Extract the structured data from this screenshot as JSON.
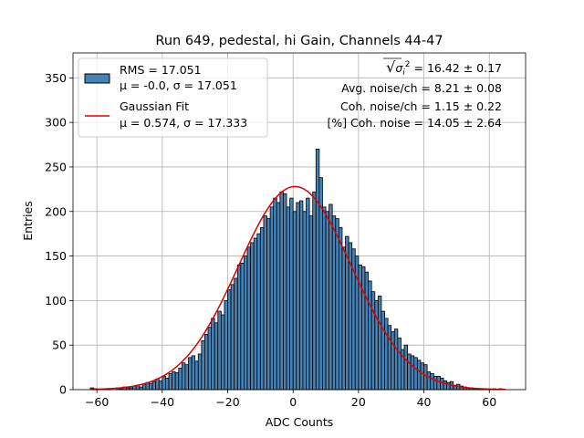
{
  "chart_data": {
    "type": "bar",
    "title": "Run 649, pedestal, hi Gain, Channels 44-47",
    "xlabel": "ADC Counts",
    "ylabel": "Entries",
    "xlim": [
      -67.3,
      71.1
    ],
    "ylim": [
      0,
      378
    ],
    "xticks": [
      -60,
      -40,
      -20,
      0,
      20,
      40,
      60
    ],
    "yticks": [
      0,
      50,
      100,
      150,
      200,
      250,
      300,
      350
    ],
    "grid": true,
    "legend_position": "upper-left",
    "legend": [
      {
        "kind": "patch",
        "line1": "RMS = 17.051",
        "line2": "μ = -0.0, σ = 17.051",
        "color": "#4682b4"
      },
      {
        "kind": "line",
        "line1": "Gaussian Fit",
        "line2": "μ = 0.574, σ = 17.333",
        "color": "#e00000"
      }
    ],
    "annotations": [
      {
        "pre": "√",
        "over": "σ",
        "sub": "i",
        "sup": "2",
        "text": " = 16.42 ± 0.17"
      },
      {
        "text": "Avg. noise/ch = 8.21 ± 0.08"
      },
      {
        "text": "Coh. noise/ch = 1.15 ± 0.22"
      },
      {
        "text": "[%] Coh. noise = 14.05 ± 2.64"
      }
    ],
    "histogram": {
      "bin_start": -62,
      "bin_width": 1,
      "color": "#4682b4",
      "edgecolor": "#000000",
      "values": [
        2,
        1,
        0,
        0,
        0,
        1,
        0,
        0,
        2,
        1,
        3,
        2,
        2,
        4,
        5,
        3,
        6,
        8,
        7,
        9,
        12,
        10,
        15,
        13,
        18,
        20,
        19,
        24,
        30,
        28,
        36,
        38,
        32,
        40,
        55,
        62,
        70,
        80,
        75,
        88,
        84,
        100,
        112,
        118,
        125,
        140,
        142,
        150,
        160,
        165,
        170,
        175,
        182,
        195,
        192,
        205,
        215,
        210,
        222,
        220,
        205,
        215,
        200,
        210,
        212,
        200,
        215,
        195,
        222,
        270,
        238,
        205,
        200,
        208,
        195,
        192,
        182,
        160,
        172,
        165,
        158,
        150,
        140,
        138,
        132,
        122,
        110,
        100,
        105,
        88,
        80,
        72,
        65,
        68,
        58,
        45,
        50,
        40,
        38,
        36,
        33,
        30,
        28,
        20,
        18,
        15,
        15,
        13,
        10,
        8,
        9,
        5,
        6,
        4,
        3,
        2,
        2,
        1,
        1,
        1,
        1,
        0,
        0,
        1,
        0,
        1
      ]
    },
    "gaussian_fit": {
      "amplitude": 228,
      "mu": 0.574,
      "sigma": 17.333,
      "x_range": [
        -62,
        65
      ],
      "color": "#e00000"
    }
  }
}
